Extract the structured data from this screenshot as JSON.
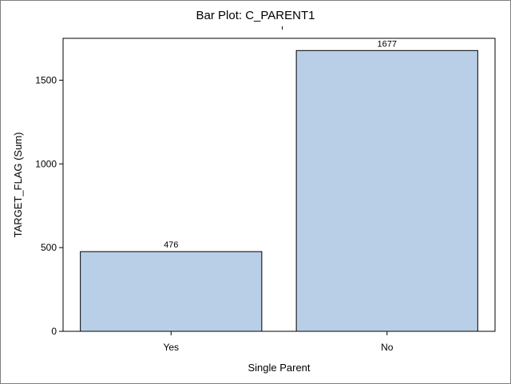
{
  "chart_data": {
    "type": "bar",
    "title": "Bar Plot: C_PARENT1",
    "xlabel": "Single Parent",
    "ylabel": "TARGET_FLAG (Sum)",
    "categories": [
      "Yes",
      "No"
    ],
    "values": [
      476,
      1677
    ],
    "data_labels": [
      "476",
      "1677"
    ],
    "ylim": [
      0,
      1750
    ],
    "yticks": [
      0,
      500,
      1000,
      1500
    ],
    "ytick_labels": [
      "0",
      "500",
      "1000",
      "1500"
    ],
    "grid": false,
    "legend": "none",
    "colors": {
      "bar_fill": "#b9cfe7",
      "bar_stroke": "#000000",
      "axis": "#000000",
      "border": "#7f7f7f"
    }
  }
}
